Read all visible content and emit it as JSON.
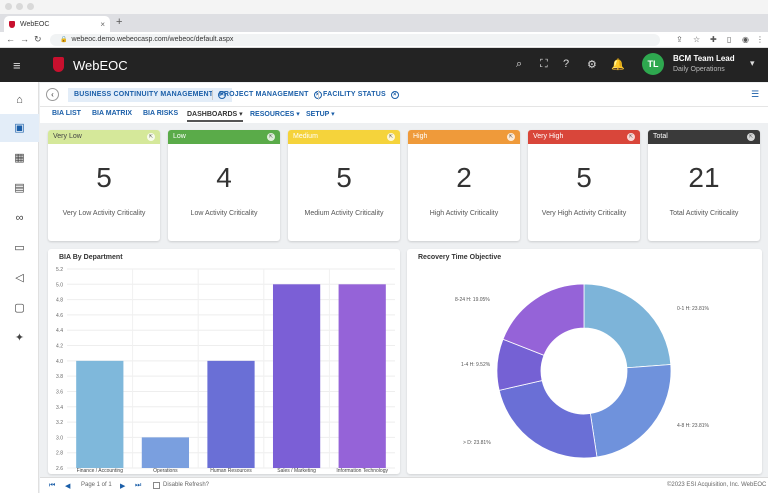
{
  "browser": {
    "tab_title": "WebEOC",
    "url": "webeoc.demo.webeocasp.com/webeoc/default.aspx"
  },
  "header": {
    "brand": "WebEOC",
    "user_initials": "TL",
    "user_name": "BCM Team Lead",
    "user_role": "Daily Operations"
  },
  "module_tabs": [
    {
      "label": "BUSINESS CONTINUITY MANAGEMENT"
    },
    {
      "label": "PROJECT MANAGEMENT"
    },
    {
      "label": "FACILITY STATUS"
    }
  ],
  "subnav": [
    {
      "label": "BIA LIST"
    },
    {
      "label": "BIA MATRIX"
    },
    {
      "label": "BIA RISKS"
    },
    {
      "label": "DASHBOARDS ▾"
    },
    {
      "label": "RESOURCES ▾"
    },
    {
      "label": "SETUP ▾"
    }
  ],
  "cards": [
    {
      "title": "Very Low",
      "value": "5",
      "label": "Very Low Activity Criticality",
      "color": "#d5e89a",
      "text_color": "#444444"
    },
    {
      "title": "Low",
      "value": "4",
      "label": "Low Activity Criticality",
      "color": "#5aab49",
      "text_color": "#ffffff"
    },
    {
      "title": "Medium",
      "value": "5",
      "label": "Medium Activity Criticality",
      "color": "#f5d33b",
      "text_color": "#ffffff"
    },
    {
      "title": "High",
      "value": "2",
      "label": "High Activity Criticality",
      "color": "#ef9a3a",
      "text_color": "#ffffff"
    },
    {
      "title": "Very High",
      "value": "5",
      "label": "Very High Activity Criticality",
      "color": "#d9463a",
      "text_color": "#ffffff"
    },
    {
      "title": "Total",
      "value": "21",
      "label": "Total Activity Criticality",
      "color": "#3a3a3a",
      "text_color": "#ffffff"
    }
  ],
  "bar_panel": {
    "title": "BIA By Department"
  },
  "pie_panel": {
    "title": "Recovery Time Objective"
  },
  "chart_data": [
    {
      "type": "bar",
      "title": "BIA By Department",
      "categories": [
        "Finance / Accounting",
        "Operations",
        "Human Resources",
        "Sales / Marketing",
        "Information Technology"
      ],
      "values": [
        4.0,
        3.0,
        4.0,
        5.0,
        5.0
      ],
      "colors": [
        "#7fb8db",
        "#7a9fdf",
        "#6a6fd6",
        "#7b5fd6",
        "#9563d8"
      ],
      "ylim": [
        2.6,
        5.2
      ],
      "yticks": [
        "2.6",
        "2.8",
        "3.0",
        "3.2",
        "3.4",
        "3.6",
        "3.8",
        "4.0",
        "4.2",
        "4.4",
        "4.6",
        "4.8",
        "5.0",
        "5.2"
      ],
      "grid": true
    },
    {
      "type": "pie",
      "title": "Recovery Time Objective",
      "labels": [
        "0-1 H: 23.81%",
        "4-8 H: 23.81%",
        "> D: 23.81%",
        "1-4 H: 9.52%",
        "8-24 H: 19.05%"
      ],
      "values": [
        23.81,
        23.81,
        23.81,
        9.52,
        19.05
      ],
      "colors": [
        "#7db4d9",
        "#6f92dc",
        "#6a6fd6",
        "#7561d4",
        "#9563d8"
      ],
      "donut": true
    }
  ],
  "footer": {
    "page_label": "Page 1 of 1",
    "refresh_label": "Disable Refresh?",
    "copyright": "©2023 ESI Acquisition, Inc. WebEOC"
  }
}
